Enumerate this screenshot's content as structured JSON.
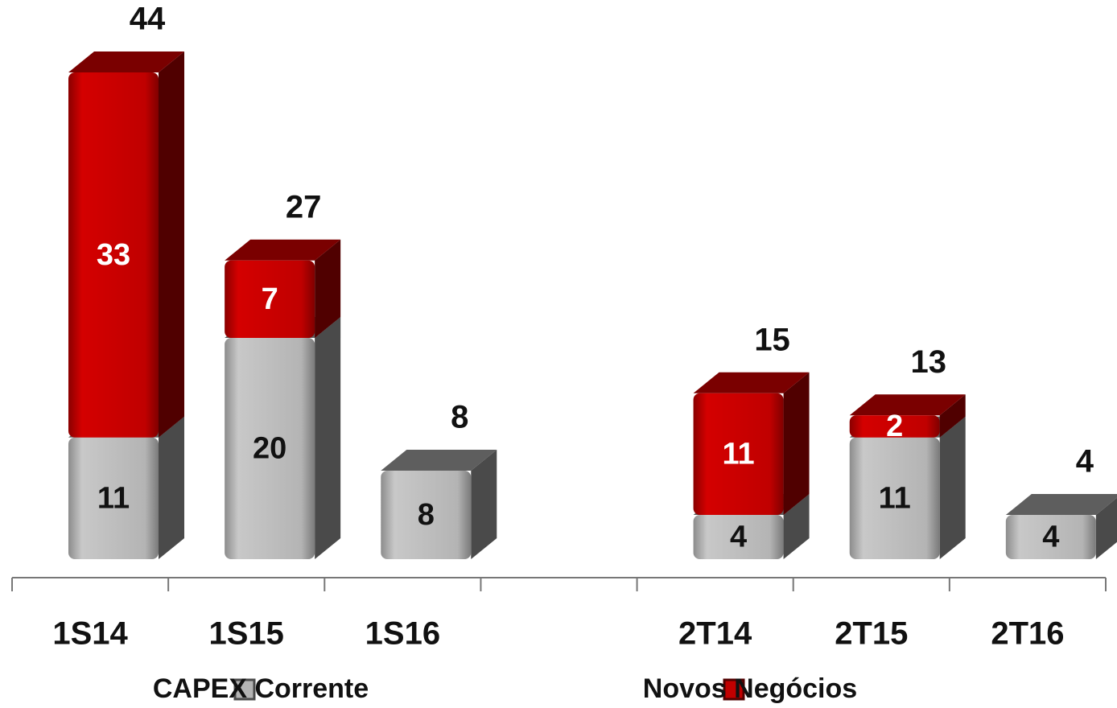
{
  "chart_data": {
    "type": "stacked_bar_3d",
    "categories": [
      "1S14",
      "1S15",
      "1S16",
      null,
      "2T14",
      "2T15",
      "2T16"
    ],
    "series": [
      {
        "name": "CAPEX Corrente",
        "color": "#b4b4b4",
        "values": [
          11,
          20,
          8,
          null,
          4,
          11,
          4
        ]
      },
      {
        "name": "Novos Negócios",
        "color": "#c00000",
        "values": [
          33,
          7,
          null,
          null,
          11,
          2,
          null
        ]
      }
    ],
    "totals": [
      44,
      27,
      8,
      null,
      15,
      13,
      4
    ],
    "legend": "bottom"
  }
}
